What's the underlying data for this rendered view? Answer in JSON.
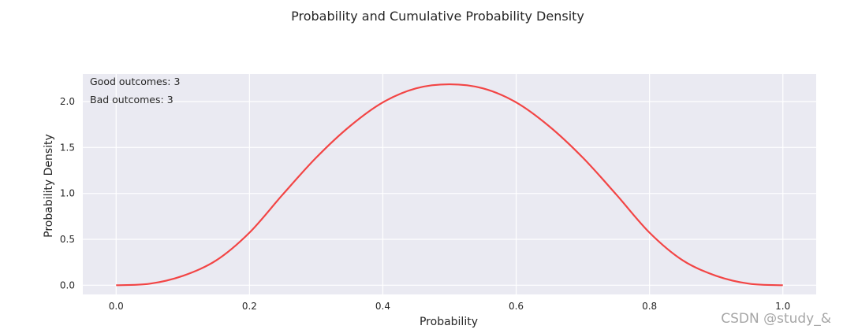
{
  "chart_data": {
    "type": "line",
    "title": "Probability and Cumulative Probability Density",
    "xlabel": "Probability",
    "ylabel": "Probability Density",
    "xlim": [
      -0.05,
      1.05
    ],
    "ylim": [
      -0.1,
      2.3
    ],
    "grid": true,
    "xticks": [
      "0.0",
      "0.2",
      "0.4",
      "0.6",
      "0.8",
      "1.0"
    ],
    "yticks": [
      "0.0",
      "0.5",
      "1.0",
      "1.5",
      "2.0"
    ],
    "annotations": [
      "Good outcomes: 3",
      "Bad outcomes: 3"
    ],
    "line_color": "#f24545",
    "background_color": "#eaeaf2",
    "series": [
      {
        "x": [
          0.0,
          0.05,
          0.1,
          0.15,
          0.2,
          0.25,
          0.3,
          0.35,
          0.4,
          0.45,
          0.5,
          0.55,
          0.6,
          0.65,
          0.7,
          0.75,
          0.8,
          0.85,
          0.9,
          0.95,
          1.0
        ],
        "y": [
          0.0,
          0.016,
          0.102,
          0.27,
          0.573,
          0.989,
          1.389,
          1.728,
          1.991,
          2.144,
          2.188,
          2.144,
          1.991,
          1.728,
          1.389,
          0.989,
          0.573,
          0.27,
          0.102,
          0.016,
          0.0
        ]
      }
    ]
  },
  "watermark": "CSDN @study_&"
}
